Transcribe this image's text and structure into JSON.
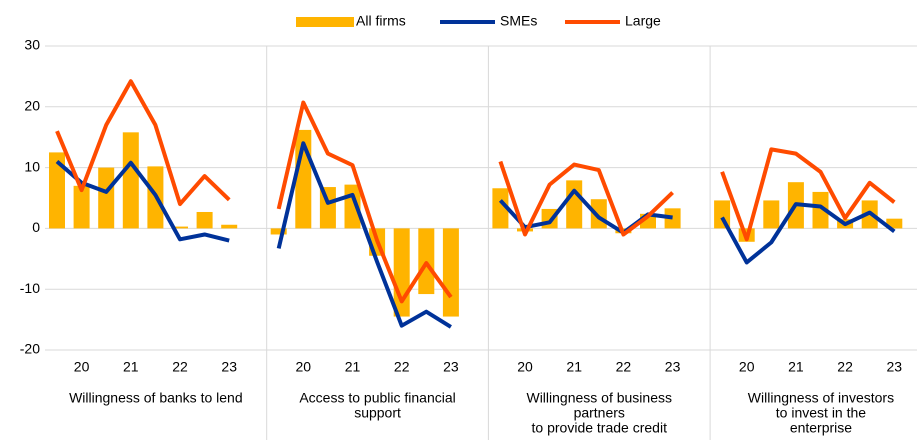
{
  "chart_data": {
    "type": "bar",
    "series": [
      {
        "name": "All firms",
        "color": "#ffb400",
        "type": "bar",
        "values": [
          [
            12.5,
            7,
            10,
            15.8,
            10.2,
            0.3,
            2.7,
            0.6
          ],
          [
            -1,
            16.2,
            6.8,
            7.2,
            -4.5,
            -14.5,
            -10.8,
            -14.5
          ],
          [
            6.6,
            -0.5,
            3.2,
            7.9,
            4.8,
            -0.8,
            2.4,
            3.3
          ],
          [
            4.6,
            -2.2,
            4.6,
            7.6,
            6,
            1.5,
            4.6,
            1.6
          ]
        ]
      },
      {
        "name": "SMEs",
        "color": "#003299",
        "type": "line",
        "values": [
          [
            11,
            7.5,
            6,
            10.8,
            5.5,
            -1.8,
            -1,
            -2
          ],
          [
            -3.3,
            14,
            4.2,
            5.5,
            -5.5,
            -16,
            -13.7,
            -16.2
          ],
          [
            4.6,
            0.2,
            1,
            6.2,
            1.8,
            -0.7,
            2.3,
            1.8
          ],
          [
            1.8,
            -5.6,
            -2.3,
            4,
            3.6,
            0.7,
            2.6,
            -0.5
          ]
        ]
      },
      {
        "name": "Large",
        "color": "#ff4b00",
        "type": "line",
        "values": [
          [
            16,
            6.3,
            17,
            24.2,
            17,
            4,
            8.6,
            4.7
          ],
          [
            3.2,
            20.7,
            12.3,
            10.4,
            -2,
            -12,
            -5.7,
            -11.3
          ],
          [
            11,
            -1,
            7.2,
            10.5,
            9.6,
            -1,
            2,
            5.9
          ],
          [
            9.3,
            -1.8,
            13,
            12.3,
            9.3,
            1.7,
            7.5,
            4.3
          ]
        ]
      }
    ],
    "panels": [
      {
        "title": [
          "Willingness of banks to lend"
        ],
        "categories": [
          null,
          "20",
          null,
          "21",
          null,
          "22",
          null,
          "23"
        ]
      },
      {
        "title": [
          "Access to public financial",
          "support"
        ],
        "categories": [
          null,
          "20",
          null,
          "21",
          null,
          "22",
          null,
          "23"
        ]
      },
      {
        "title": [
          "Willingness of business",
          "partners",
          "to provide trade credit"
        ],
        "categories": [
          null,
          "20",
          null,
          "21",
          null,
          "22",
          null,
          "23"
        ]
      },
      {
        "title": [
          "Willingness of investors",
          "to invest in the",
          "enterprise"
        ],
        "categories": [
          null,
          "20",
          null,
          "21",
          null,
          "22",
          null,
          "23"
        ]
      }
    ],
    "ylim": [
      -20,
      30
    ],
    "yticks": [
      -20,
      -10,
      0,
      10,
      20,
      30
    ],
    "grid": true,
    "legend": "top"
  }
}
